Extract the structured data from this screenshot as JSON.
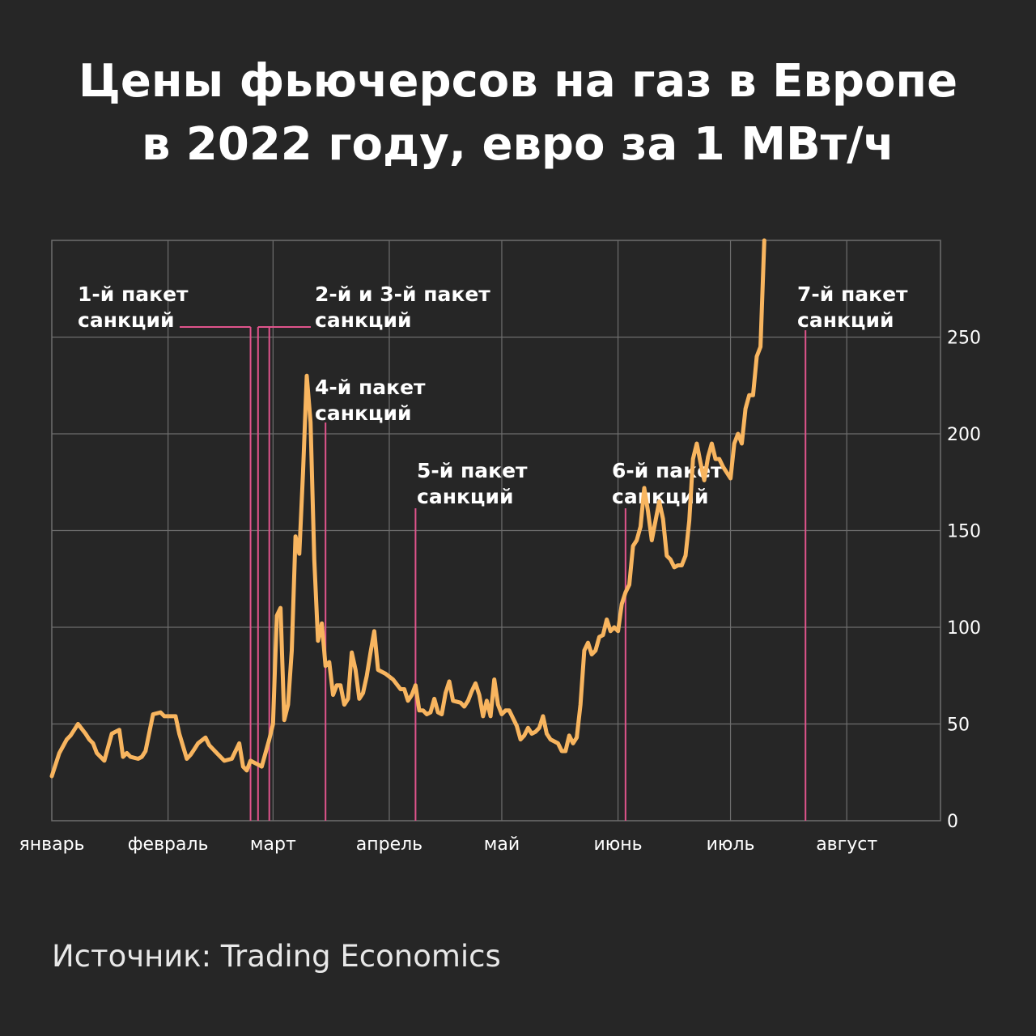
{
  "title_line1": "Цены фьючерсов на газ в Европе",
  "title_line2": "в 2022 году, евро за 1 МВт/ч",
  "source": "Источник: Trading Economics",
  "colors": {
    "background": "#262626",
    "line": "#f8b55f",
    "grid": "#6e6e6e",
    "marker": "#e0548c",
    "text": "#ffffff"
  },
  "chart_data": {
    "type": "line",
    "title": "Цены фьючерсов на газ в Европе в 2022 году, евро за 1 МВт/ч",
    "xlabel": "",
    "ylabel": "",
    "ylim": [
      0,
      300
    ],
    "yticks": [
      0,
      50,
      100,
      150,
      200,
      250
    ],
    "grid": true,
    "y_axis_side": "right",
    "x_range": [
      "2022-01-01",
      "2022-08-26"
    ],
    "months": [
      {
        "label": "январь",
        "date": "2022-01-01"
      },
      {
        "label": "февраль",
        "date": "2022-02-01"
      },
      {
        "label": "март",
        "date": "2022-03-01"
      },
      {
        "label": "апрель",
        "date": "2022-04-01"
      },
      {
        "label": "май",
        "date": "2022-05-01"
      },
      {
        "label": "июнь",
        "date": "2022-06-01"
      },
      {
        "label": "июль",
        "date": "2022-07-01"
      },
      {
        "label": "август",
        "date": "2022-08-01"
      }
    ],
    "series": [
      {
        "values": [
          [
            "2022-01-01",
            23
          ],
          [
            "2022-01-03",
            35
          ],
          [
            "2022-01-05",
            42
          ],
          [
            "2022-01-06",
            44
          ],
          [
            "2022-01-07",
            47
          ],
          [
            "2022-01-08",
            50
          ],
          [
            "2022-01-10",
            45
          ],
          [
            "2022-01-11",
            42
          ],
          [
            "2022-01-12",
            40
          ],
          [
            "2022-01-13",
            35
          ],
          [
            "2022-01-14",
            33
          ],
          [
            "2022-01-15",
            31
          ],
          [
            "2022-01-17",
            45
          ],
          [
            "2022-01-19",
            47
          ],
          [
            "2022-01-20",
            33
          ],
          [
            "2022-01-21",
            35
          ],
          [
            "2022-01-22",
            33
          ],
          [
            "2022-01-24",
            32
          ],
          [
            "2022-01-25",
            33
          ],
          [
            "2022-01-26",
            36
          ],
          [
            "2022-01-28",
            55
          ],
          [
            "2022-01-30",
            56
          ],
          [
            "2022-01-31",
            54
          ],
          [
            "2022-02-03",
            54
          ],
          [
            "2022-02-04",
            45
          ],
          [
            "2022-02-06",
            32
          ],
          [
            "2022-02-07",
            34
          ],
          [
            "2022-02-08",
            37
          ],
          [
            "2022-02-09",
            40
          ],
          [
            "2022-02-11",
            43
          ],
          [
            "2022-02-12",
            39
          ],
          [
            "2022-02-14",
            35
          ],
          [
            "2022-02-16",
            31
          ],
          [
            "2022-02-18",
            32
          ],
          [
            "2022-02-20",
            40
          ],
          [
            "2022-02-21",
            28
          ],
          [
            "2022-02-22",
            26
          ],
          [
            "2022-02-23",
            31
          ],
          [
            "2022-02-25",
            29
          ],
          [
            "2022-02-26",
            28
          ],
          [
            "2022-02-28",
            42
          ],
          [
            "2022-03-01",
            50
          ],
          [
            "2022-03-02",
            106
          ],
          [
            "2022-03-03",
            110
          ],
          [
            "2022-03-04",
            52
          ],
          [
            "2022-03-05",
            60
          ],
          [
            "2022-03-06",
            88
          ],
          [
            "2022-03-07",
            147
          ],
          [
            "2022-03-08",
            138
          ],
          [
            "2022-03-09",
            180
          ],
          [
            "2022-03-10",
            230
          ],
          [
            "2022-03-11",
            206
          ],
          [
            "2022-03-12",
            135
          ],
          [
            "2022-03-13",
            93
          ],
          [
            "2022-03-14",
            102
          ],
          [
            "2022-03-15",
            80
          ],
          [
            "2022-03-16",
            82
          ],
          [
            "2022-03-17",
            65
          ],
          [
            "2022-03-18",
            70
          ],
          [
            "2022-03-19",
            70
          ],
          [
            "2022-03-20",
            60
          ],
          [
            "2022-03-21",
            63
          ],
          [
            "2022-03-22",
            87
          ],
          [
            "2022-03-23",
            78
          ],
          [
            "2022-03-24",
            63
          ],
          [
            "2022-03-25",
            66
          ],
          [
            "2022-03-26",
            75
          ],
          [
            "2022-03-27",
            87
          ],
          [
            "2022-03-28",
            98
          ],
          [
            "2022-03-29",
            78
          ],
          [
            "2022-03-31",
            76
          ],
          [
            "2022-04-02",
            73
          ],
          [
            "2022-04-04",
            68
          ],
          [
            "2022-04-05",
            68
          ],
          [
            "2022-04-06",
            62
          ],
          [
            "2022-04-07",
            65
          ],
          [
            "2022-04-08",
            70
          ],
          [
            "2022-04-09",
            57
          ],
          [
            "2022-04-10",
            57
          ],
          [
            "2022-04-11",
            55
          ],
          [
            "2022-04-12",
            56
          ],
          [
            "2022-04-13",
            63
          ],
          [
            "2022-04-14",
            56
          ],
          [
            "2022-04-15",
            55
          ],
          [
            "2022-04-16",
            66
          ],
          [
            "2022-04-17",
            72
          ],
          [
            "2022-04-18",
            62
          ],
          [
            "2022-04-20",
            61
          ],
          [
            "2022-04-21",
            59
          ],
          [
            "2022-04-22",
            62
          ],
          [
            "2022-04-23",
            67
          ],
          [
            "2022-04-24",
            71
          ],
          [
            "2022-04-25",
            65
          ],
          [
            "2022-04-26",
            54
          ],
          [
            "2022-04-27",
            62
          ],
          [
            "2022-04-28",
            54
          ],
          [
            "2022-04-29",
            73
          ],
          [
            "2022-04-30",
            60
          ],
          [
            "2022-05-01",
            55
          ],
          [
            "2022-05-02",
            57
          ],
          [
            "2022-05-03",
            57
          ],
          [
            "2022-05-04",
            53
          ],
          [
            "2022-05-05",
            49
          ],
          [
            "2022-05-06",
            42
          ],
          [
            "2022-05-07",
            44
          ],
          [
            "2022-05-08",
            48
          ],
          [
            "2022-05-09",
            45
          ],
          [
            "2022-05-10",
            46
          ],
          [
            "2022-05-11",
            48
          ],
          [
            "2022-05-12",
            54
          ],
          [
            "2022-05-13",
            45
          ],
          [
            "2022-05-14",
            42
          ],
          [
            "2022-05-15",
            41
          ],
          [
            "2022-05-16",
            40
          ],
          [
            "2022-05-17",
            36
          ],
          [
            "2022-05-18",
            36
          ],
          [
            "2022-05-19",
            44
          ],
          [
            "2022-05-20",
            40
          ],
          [
            "2022-05-21",
            43
          ],
          [
            "2022-05-22",
            60
          ],
          [
            "2022-05-23",
            88
          ],
          [
            "2022-05-24",
            92
          ],
          [
            "2022-05-25",
            86
          ],
          [
            "2022-05-26",
            88
          ],
          [
            "2022-05-27",
            95
          ],
          [
            "2022-05-28",
            96
          ],
          [
            "2022-05-29",
            104
          ],
          [
            "2022-05-30",
            98
          ],
          [
            "2022-05-31",
            100
          ],
          [
            "2022-06-01",
            98
          ],
          [
            "2022-06-02",
            112
          ],
          [
            "2022-06-03",
            118
          ],
          [
            "2022-06-04",
            122
          ],
          [
            "2022-06-05",
            142
          ],
          [
            "2022-06-06",
            145
          ],
          [
            "2022-06-07",
            152
          ],
          [
            "2022-06-08",
            172
          ],
          [
            "2022-06-09",
            160
          ],
          [
            "2022-06-10",
            145
          ],
          [
            "2022-06-11",
            155
          ],
          [
            "2022-06-12",
            165
          ],
          [
            "2022-06-13",
            156
          ],
          [
            "2022-06-14",
            137
          ],
          [
            "2022-06-15",
            135
          ],
          [
            "2022-06-16",
            131
          ],
          [
            "2022-06-17",
            132
          ],
          [
            "2022-06-18",
            132
          ],
          [
            "2022-06-19",
            137
          ],
          [
            "2022-06-20",
            155
          ],
          [
            "2022-06-21",
            187
          ],
          [
            "2022-06-22",
            195
          ],
          [
            "2022-06-23",
            185
          ],
          [
            "2022-06-24",
            176
          ],
          [
            "2022-06-25",
            188
          ],
          [
            "2022-06-26",
            195
          ],
          [
            "2022-06-27",
            187
          ],
          [
            "2022-06-28",
            187
          ],
          [
            "2022-06-29",
            183
          ],
          [
            "2022-06-30",
            180
          ],
          [
            "2022-07-01",
            177
          ],
          [
            "2022-07-02",
            195
          ],
          [
            "2022-07-03",
            200
          ],
          [
            "2022-07-04",
            195
          ],
          [
            "2022-07-05",
            213
          ],
          [
            "2022-07-06",
            220
          ],
          [
            "2022-07-07",
            220
          ],
          [
            "2022-07-08",
            240
          ],
          [
            "2022-07-09",
            245
          ],
          [
            "2022-07-10",
            300
          ]
        ]
      }
    ],
    "annotations": [
      {
        "lines": [
          "1-й пакет",
          "санкций"
        ],
        "date": "2022-02-23"
      },
      {
        "lines": [
          "2-й и 3-й пакет",
          "санкций"
        ],
        "date": "2022-02-25"
      },
      {
        "lines": [
          "2-й и 3-й пакет",
          "санкций"
        ],
        "date": "2022-02-28"
      },
      {
        "lines": [
          "4-й пакет",
          "санкций"
        ],
        "date": "2022-03-15"
      },
      {
        "lines": [
          "5-й пакет",
          "санкций"
        ],
        "date": "2022-04-08"
      },
      {
        "lines": [
          "6-й пакет",
          "санкций"
        ],
        "date": "2022-06-03"
      },
      {
        "lines": [
          "7-й пакет",
          "санкций"
        ],
        "date": "2022-07-21"
      }
    ],
    "annotation_labels": [
      {
        "line1": "1-й пакет",
        "line2": "санкций"
      },
      {
        "line1": "2-й и 3-й пакет",
        "line2": "санкций"
      },
      {
        "line1": "4-й пакет",
        "line2": "санкций"
      },
      {
        "line1": "5-й пакет",
        "line2": "санкций"
      },
      {
        "line1": "6-й пакет",
        "line2": "санкций"
      },
      {
        "line1": "7-й пакет",
        "line2": "санкций"
      }
    ]
  }
}
